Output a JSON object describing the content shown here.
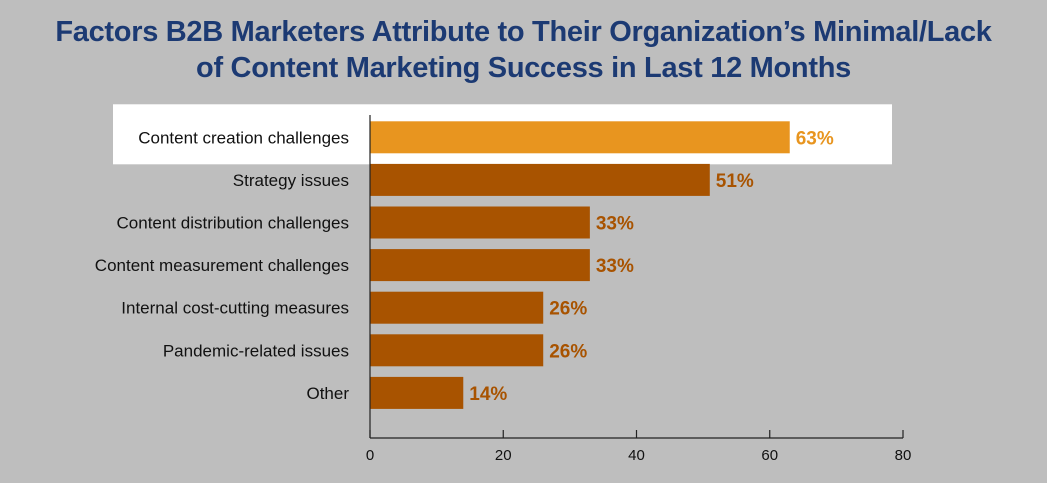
{
  "title_lines": [
    "Factors B2B Marketers Attribute to Their Organization’s Minimal/Lack",
    "of Content Marketing Success in Last 12 Months"
  ],
  "colors": {
    "background": "#bebebe",
    "title": "#1c3a73",
    "bar": "#a85300",
    "bar_highlight": "#e8951f",
    "value_label": "#a85300",
    "value_label_highlight": "#e8951f",
    "highlight_band": "#ffffff",
    "axis": "#222222",
    "category_text": "#111111"
  },
  "chart_data": {
    "type": "bar",
    "orientation": "horizontal",
    "title": "Factors B2B Marketers Attribute to Their Organization’s Minimal/Lack of Content Marketing Success in Last 12 Months",
    "categories": [
      "Content creation challenges",
      "Strategy issues",
      "Content distribution challenges",
      "Content measurement challenges",
      "Internal cost-cutting measures",
      "Pandemic-related issues",
      "Other"
    ],
    "values": [
      63,
      51,
      33,
      33,
      26,
      26,
      14
    ],
    "value_labels": [
      "63%",
      "51%",
      "33%",
      "33%",
      "26%",
      "26%",
      "14%"
    ],
    "highlighted_category": "Content creation challenges",
    "xlim": [
      0,
      80
    ],
    "xticks": [
      0,
      20,
      40,
      60,
      80
    ],
    "xlabel": "",
    "ylabel": "",
    "grid": false,
    "legend": "none"
  }
}
